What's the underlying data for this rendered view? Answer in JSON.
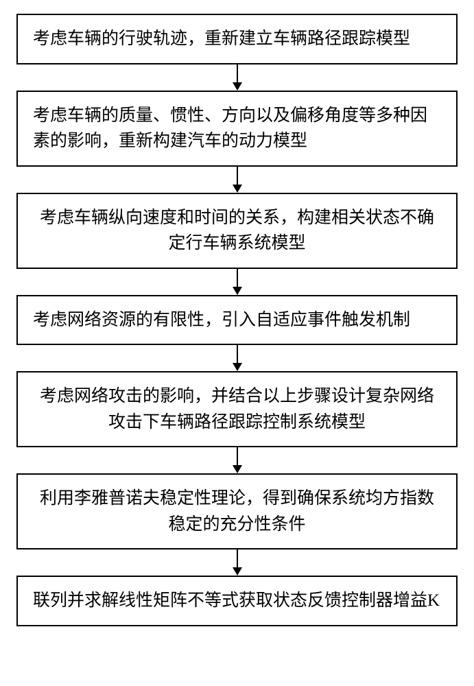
{
  "flowchart": {
    "type": "flowchart",
    "background_color": "#ffffff",
    "box_border_color": "#000000",
    "box_border_width": 2,
    "text_color": "#000000",
    "font_size": 25,
    "arrow_color": "#000000",
    "arrow_height": 38,
    "steps": [
      {
        "text": "考虑车辆的行驶轨迹，重新建立车辆路径跟踪模型",
        "text_align": "left",
        "lines": 1
      },
      {
        "text": "考虑车辆的质量、惯性、方向以及偏移角度等多种因素的影响，重新构建汽车的动力模型",
        "text_align": "left",
        "lines": 2
      },
      {
        "text": "考虑车辆纵向速度和时间的关系，构建相关状态不确定行车辆系统模型",
        "text_align": "center",
        "lines": 2
      },
      {
        "text": "考虑网络资源的有限性，引入自适应事件触发机制",
        "text_align": "left",
        "lines": 1
      },
      {
        "text": "考虑网络攻击的影响，并结合以上步骤设计复杂网络攻击下车辆路径跟踪控制系统模型",
        "text_align": "center",
        "lines": 2
      },
      {
        "text": "利用李雅普诺夫稳定性理论，得到确保系统均方指数稳定的充分性条件",
        "text_align": "center",
        "lines": 2
      },
      {
        "text": "联列并求解线性矩阵不等式获取状态反馈控制器增益K",
        "text_align": "left",
        "lines": 1
      }
    ]
  }
}
